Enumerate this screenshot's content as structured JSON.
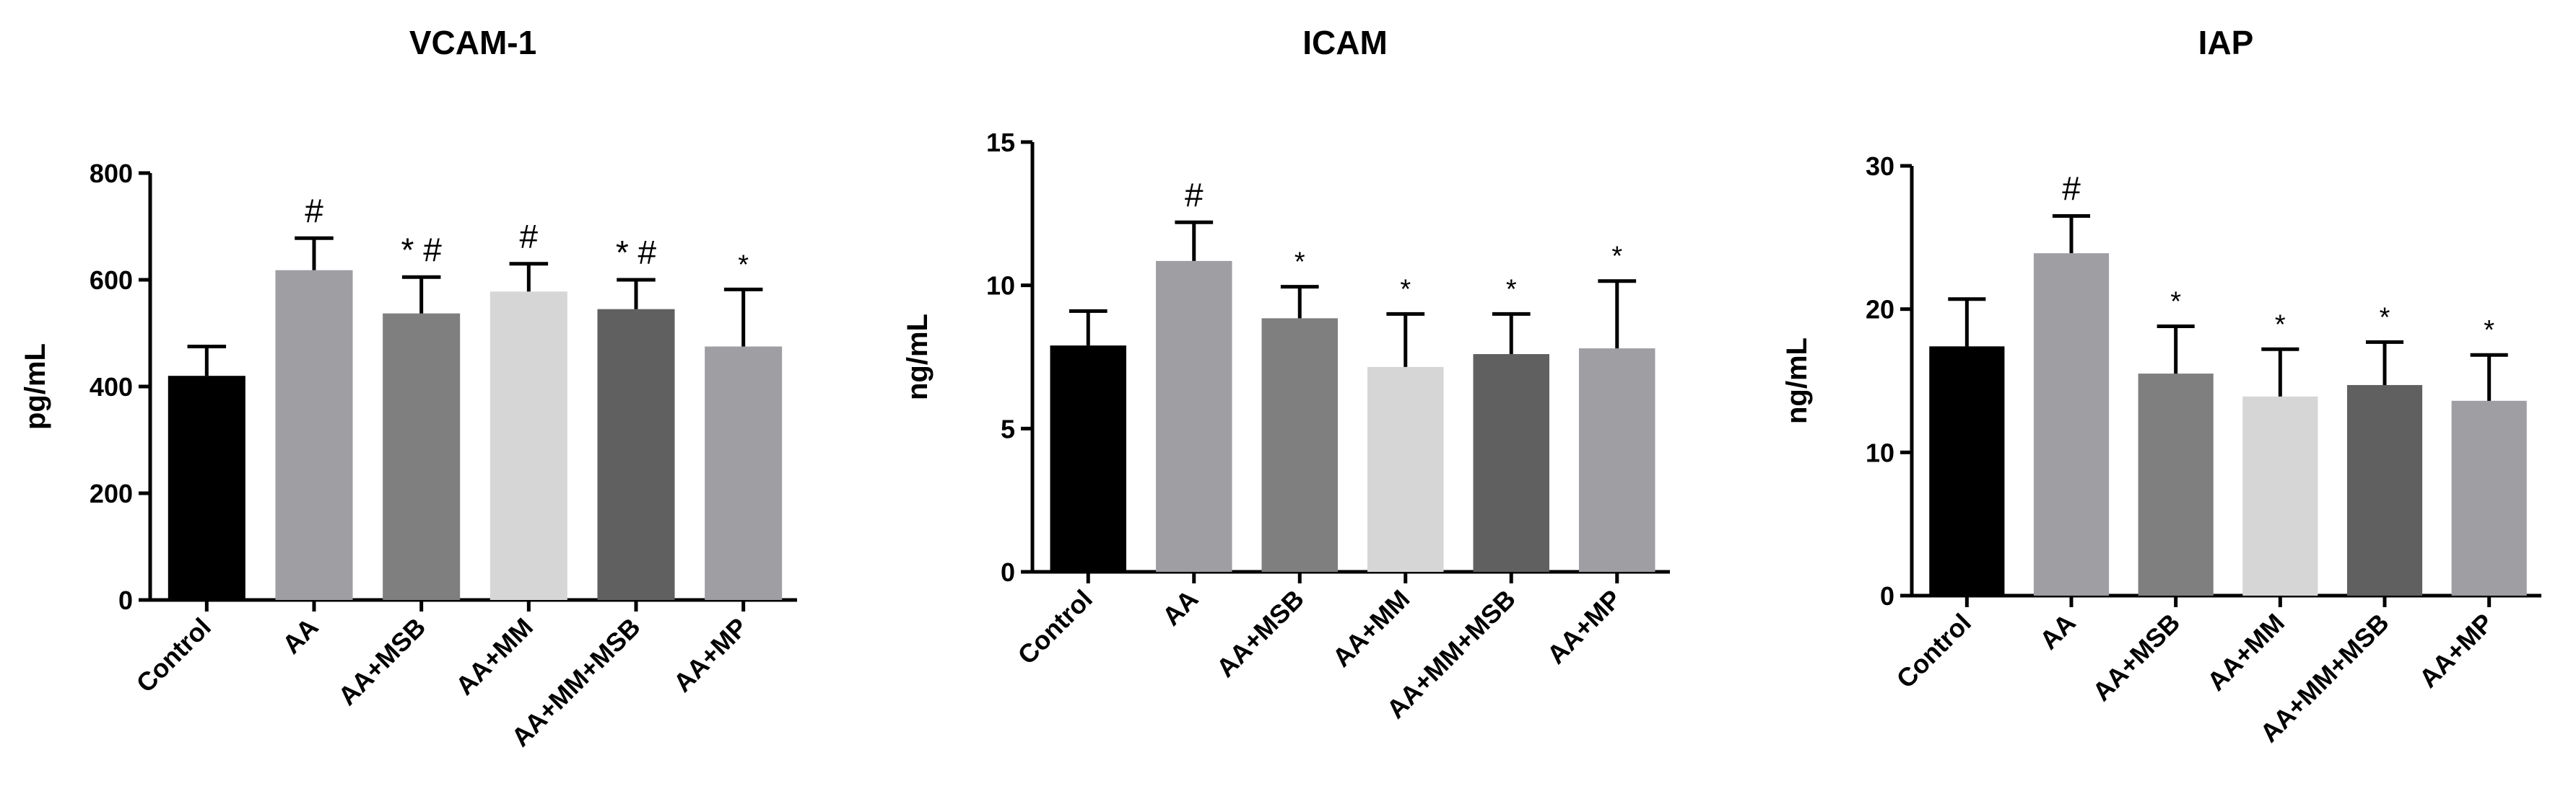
{
  "chart_data": [
    {
      "type": "bar",
      "title": "VCAM-1",
      "ylabel": "pg/mL",
      "ylim": [
        0,
        800
      ],
      "yticks": [
        0,
        200,
        400,
        600,
        800
      ],
      "categories": [
        "Control",
        "AA",
        "AA+MSB",
        "AA+MM",
        "AA+MM+MSB",
        "AA+MP"
      ],
      "values": [
        420,
        618,
        537,
        578,
        545,
        475
      ],
      "errors": [
        55,
        60,
        68,
        52,
        55,
        107
      ],
      "annotations": [
        "",
        "#",
        "* #",
        "#",
        "* #",
        "*"
      ],
      "colors": [
        "#000000",
        "#9e9ea3",
        "#7f7f7f",
        "#d6d6d6",
        "#606060",
        "#9e9ea3"
      ]
    },
    {
      "type": "bar",
      "title": "ICAM",
      "ylabel": "ng/mL",
      "ylim": [
        0,
        15
      ],
      "yticks": [
        0,
        5,
        10,
        15
      ],
      "categories": [
        "Control",
        "AA",
        "AA+MSB",
        "AA+MM",
        "AA+MM+MSB",
        "AA+MP"
      ],
      "values": [
        7.9,
        10.85,
        8.85,
        7.15,
        7.6,
        7.8
      ],
      "errors": [
        1.2,
        1.35,
        1.1,
        1.85,
        1.4,
        2.35
      ],
      "annotations": [
        "",
        "#",
        "*",
        "*",
        "*",
        "*"
      ],
      "colors": [
        "#000000",
        "#9e9ea3",
        "#7f7f7f",
        "#d6d6d6",
        "#606060",
        "#9e9ea3"
      ]
    },
    {
      "type": "bar",
      "title": "IAP",
      "ylabel": "ng/mL",
      "ylim": [
        0,
        30
      ],
      "yticks": [
        0,
        10,
        20,
        30
      ],
      "categories": [
        "Control",
        "AA",
        "AA+MSB",
        "AA+MM",
        "AA+MM+MSB",
        "AA+MP"
      ],
      "values": [
        17.4,
        23.9,
        15.5,
        13.9,
        14.7,
        13.6
      ],
      "errors": [
        3.3,
        2.6,
        3.3,
        3.3,
        3.0,
        3.2
      ],
      "annotations": [
        "",
        "#",
        "*",
        "*",
        "*",
        "*"
      ],
      "colors": [
        "#000000",
        "#9e9ea3",
        "#7f7f7f",
        "#d6d6d6",
        "#606060",
        "#9e9ea3"
      ]
    }
  ]
}
